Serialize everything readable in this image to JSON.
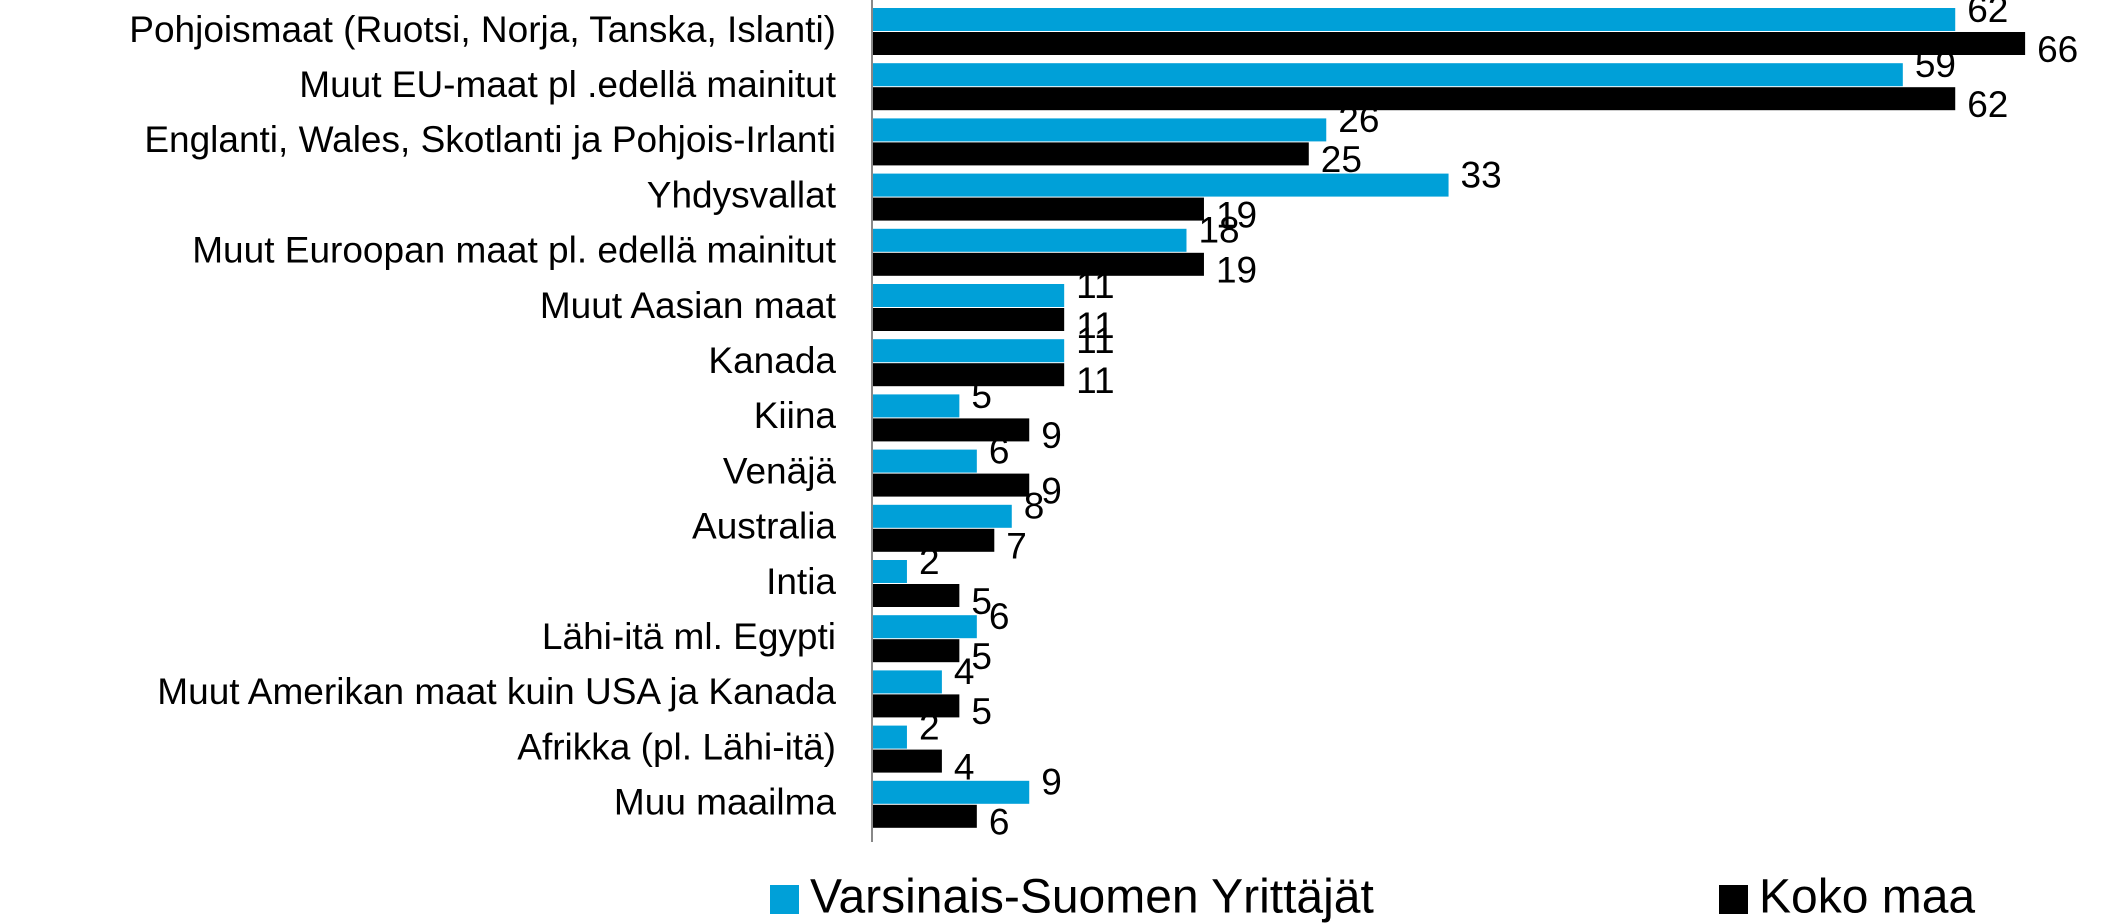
{
  "chart_data": {
    "type": "hbar",
    "categories": [
      "Pohjoismaat (Ruotsi, Norja, Tanska, Islanti)",
      "Muut EU-maat pl .edellä mainitut",
      "Englanti, Wales, Skotlanti ja Pohjois-Irlanti",
      "Yhdysvallat",
      "Muut Euroopan maat pl. edellä mainitut",
      "Muut Aasian maat",
      "Kanada",
      "Kiina",
      "Venäjä",
      "Australia",
      "Intia",
      "Lähi-itä ml. Egypti",
      "Muut Amerikan maat kuin USA ja Kanada",
      "Afrikka (pl. Lähi-itä)",
      "Muu maailma"
    ],
    "series": [
      {
        "name": "Varsinais-Suomen Yrittäjät",
        "color": "#00a0d8",
        "values": [
          62,
          59,
          26,
          33,
          18,
          11,
          11,
          5,
          6,
          8,
          2,
          6,
          4,
          2,
          9
        ]
      },
      {
        "name": "Koko maa",
        "color": "#000000",
        "values": [
          66,
          62,
          25,
          19,
          19,
          11,
          11,
          9,
          9,
          7,
          5,
          5,
          5,
          4,
          6
        ]
      }
    ],
    "xlim": [
      0,
      70
    ],
    "legend": "bottom"
  }
}
